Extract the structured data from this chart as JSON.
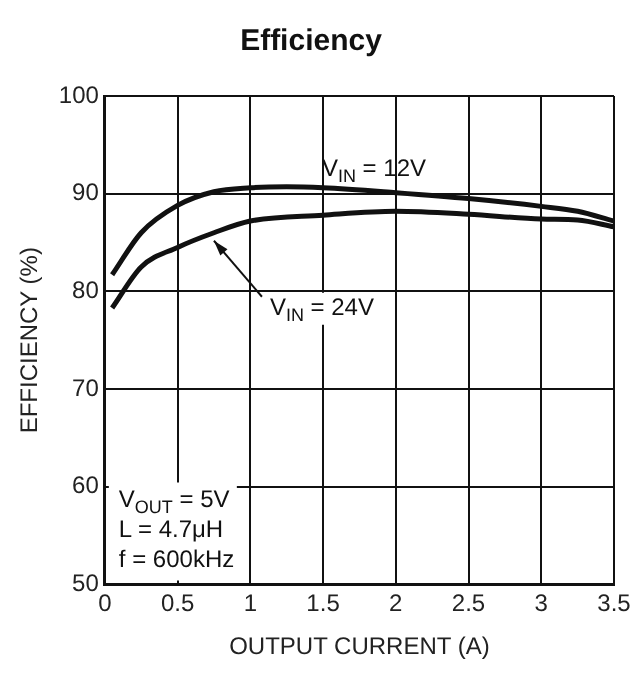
{
  "chart_data": {
    "type": "line",
    "title": "Efficiency",
    "xlabel": "OUTPUT CURRENT (A)",
    "ylabel": "EFFICIENCY (%)",
    "series": [
      {
        "color": "#111111",
        "x": [
          0.05,
          0.25,
          0.5,
          0.75,
          1,
          1.25,
          1.5,
          2,
          2.5,
          3,
          3.25,
          3.5
        ],
        "values": [
          81.7,
          86,
          88.8,
          90.2,
          90.6,
          90.7,
          90.6,
          90.1,
          89.5,
          88.7,
          88.2,
          87.2
        ]
      },
      {
        "color": "#111111",
        "x": [
          0.05,
          0.25,
          0.5,
          0.75,
          1,
          1.5,
          2,
          2.5,
          3,
          3.25,
          3.5
        ],
        "values": [
          78.3,
          82.5,
          84.5,
          86,
          87.2,
          87.8,
          88.2,
          87.9,
          87.4,
          87.3,
          86.6
        ]
      }
    ],
    "annotations": [
      {
        "text": "V$_{IN}$ = 12V",
        "x": 1.85,
        "y": 90.2
      },
      {
        "text": "V$_{IN}$ = 24V",
        "x": 0.75,
        "y": 86
      },
      "V$_{OUT}$ = 5V",
      "L = 4.7μH",
      "f = 600kHz"
    ],
    "xlim": [
      0,
      3.5
    ],
    "xticks": [
      0,
      0.5,
      1,
      1.5,
      2,
      2.5,
      3,
      3.5
    ],
    "ylim": [
      50,
      100
    ],
    "yticks": [
      50,
      60,
      70,
      80,
      90,
      100
    ],
    "grid": true,
    "legend": false,
    "marker": "none",
    "line_style": "solid"
  }
}
